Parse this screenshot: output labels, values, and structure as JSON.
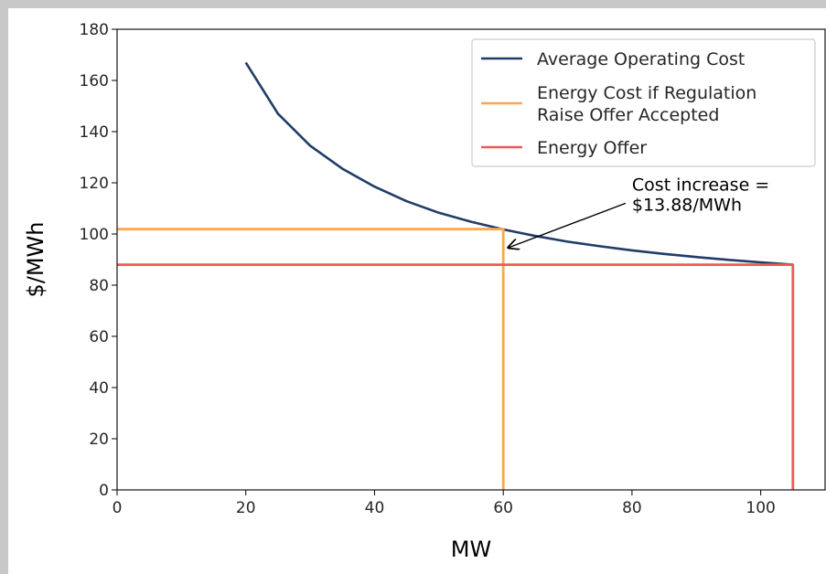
{
  "chart_data": {
    "type": "line",
    "xlabel": "MW",
    "ylabel": "$/MWh",
    "xlim": [
      0,
      110
    ],
    "ylim": [
      0,
      180
    ],
    "xticks": [
      0,
      20,
      40,
      60,
      80,
      100
    ],
    "yticks": [
      0,
      20,
      40,
      60,
      80,
      100,
      120,
      140,
      160,
      180
    ],
    "grid": false,
    "legend_position": "top-right",
    "colors": {
      "avg_cost": "#1f3d66",
      "regulation": "#ffa64d",
      "energy_offer": "#ee5a5a"
    },
    "series": [
      {
        "name": "Average Operating Cost",
        "kind": "curve",
        "color_key": "avg_cost",
        "x": [
          20,
          25,
          30,
          35,
          40,
          45,
          50,
          55,
          60,
          65,
          70,
          75,
          80,
          85,
          90,
          95,
          100,
          105
        ],
        "y": [
          167,
          147,
          134.5,
          125.5,
          118.5,
          112.8,
          108.3,
          104.8,
          101.8,
          99.2,
          97,
          95.2,
          93.6,
          92.2,
          91,
          89.9,
          88.9,
          88
        ]
      },
      {
        "name": "Energy Cost if Regulation Raise Offer Accepted",
        "kind": "elbow",
        "color_key": "regulation",
        "x": [
          0,
          60,
          60
        ],
        "y": [
          101.9,
          101.9,
          0
        ]
      },
      {
        "name": "Energy Offer",
        "kind": "elbow",
        "color_key": "energy_offer",
        "x": [
          0,
          105,
          105
        ],
        "y": [
          88,
          88,
          0
        ]
      }
    ],
    "annotation": {
      "lines": [
        "Cost increase =",
        "$13.88/MWh"
      ],
      "text_x": 80,
      "text_y": 117,
      "arrow_to": [
        60.5,
        95
      ]
    }
  }
}
